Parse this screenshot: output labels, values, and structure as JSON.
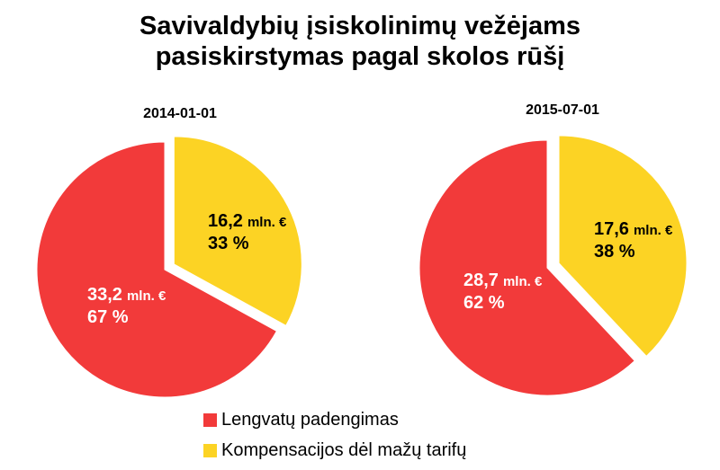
{
  "title": {
    "line1": "Savivaldybių įsiskolinimų vežėjams",
    "line2": "pasiskirstymas pagal skolos rūšį"
  },
  "colors": {
    "lengvatu": "#f23a3a",
    "kompensacijos": "#fcd324",
    "label_light": "#ffffff",
    "label_dark": "#000000"
  },
  "legend": [
    {
      "name": "Lengvatų padengimas",
      "color": "#f23a3a"
    },
    {
      "name": "Kompensacijos dėl mažų tarifų",
      "color": "#fcd324"
    }
  ],
  "chart_data": [
    {
      "type": "pie",
      "title": "2014-01-01",
      "unit": "mln. €",
      "slices": [
        {
          "name": "Lengvatų padengimas",
          "value_text": "33,2",
          "value": 33.2,
          "percent_text": "67 %",
          "percent": 67,
          "color": "#f23a3a",
          "exploded": false
        },
        {
          "name": "Kompensacijos dėl mažų tarifų",
          "value_text": "16,2",
          "value": 16.2,
          "percent_text": "33 %",
          "percent": 33,
          "color": "#fcd324",
          "exploded": true
        }
      ]
    },
    {
      "type": "pie",
      "title": "2015-07-01",
      "unit": "mln. €",
      "slices": [
        {
          "name": "Lengvatų padengimas",
          "value_text": "28,7",
          "value": 28.7,
          "percent_text": "62 %",
          "percent": 62,
          "color": "#f23a3a",
          "exploded": false
        },
        {
          "name": "Kompensacijos dėl mažų tarifų",
          "value_text": "17,6",
          "value": 17.6,
          "percent_text": "38 %",
          "percent": 38,
          "color": "#fcd324",
          "exploded": true
        }
      ]
    }
  ]
}
